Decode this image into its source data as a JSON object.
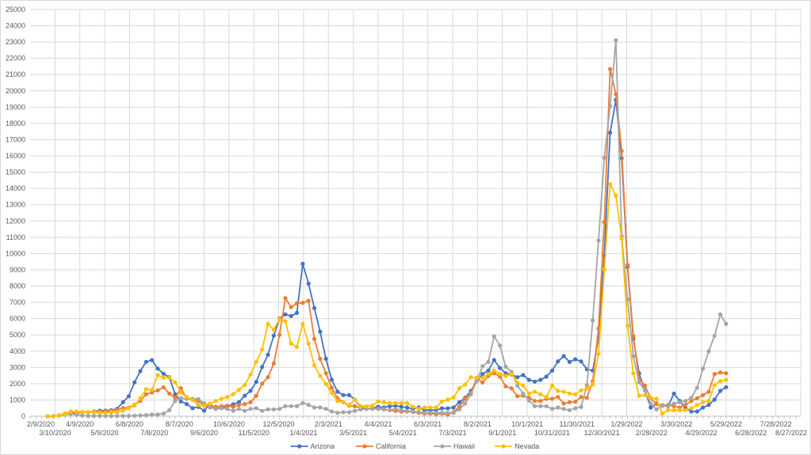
{
  "chart_data": {
    "type": "line",
    "title": "",
    "xlabel": "",
    "ylabel": "",
    "ylim": [
      0,
      25000
    ],
    "y_tick_step": 1000,
    "grid": true,
    "legend_position": "bottom",
    "x_start_date": "3/1/2020",
    "x_step_days": 7,
    "x_axis_start_date": "2/9/2020",
    "x_tick_step_days": 30,
    "x_tick_labels": [
      "2/9/2020",
      "3/10/2020",
      "4/9/2020",
      "5/9/2020",
      "6/8/2020",
      "7/8/2020",
      "8/7/2020",
      "9/6/2020",
      "10/6/2020",
      "11/5/2020",
      "12/5/2020",
      "1/4/2021",
      "2/3/2021",
      "3/5/2021",
      "4/4/2021",
      "5/4/2021",
      "6/3/2021",
      "7/3/2021",
      "8/2/2021",
      "9/1/2021",
      "10/1/2021",
      "10/31/2021",
      "11/30/2021",
      "12/30/2021",
      "1/29/2022",
      "2/28/2022",
      "3/30/2022",
      "4/29/2022",
      "5/29/2022",
      "6/28/2022",
      "7/28/2022",
      "8/27/2022"
    ],
    "y_tick_labels": [
      "0",
      "1000",
      "2000",
      "3000",
      "4000",
      "5000",
      "6000",
      "7000",
      "8000",
      "9000",
      "10000",
      "11000",
      "12000",
      "13000",
      "14000",
      "15000",
      "16000",
      "17000",
      "18000",
      "19000",
      "20000",
      "21000",
      "22000",
      "23000",
      "24000",
      "25000"
    ],
    "series": [
      {
        "name": "Arizona",
        "color": "#4472C4",
        "values": [
          0,
          0,
          50,
          130,
          160,
          210,
          260,
          260,
          290,
          340,
          340,
          370,
          450,
          860,
          1230,
          2080,
          2770,
          3340,
          3450,
          2930,
          2610,
          2400,
          1350,
          910,
          750,
          490,
          580,
          340,
          750,
          450,
          540,
          620,
          730,
          860,
          1260,
          1560,
          2110,
          3020,
          3780,
          4950,
          6000,
          6260,
          6160,
          6350,
          9370,
          8150,
          6650,
          5200,
          3530,
          2240,
          1510,
          1300,
          1300,
          1020,
          540,
          450,
          490,
          580,
          535,
          616,
          648,
          584,
          535,
          454,
          535,
          373,
          373,
          373,
          486,
          486,
          535,
          859,
          1135,
          1556,
          2156,
          2594,
          2805,
          3453,
          2967,
          2642,
          2561,
          2399,
          2529,
          2237,
          2124,
          2237,
          2431,
          2805,
          3372,
          3696,
          3339,
          3501,
          3372,
          2885,
          2804,
          4830,
          9888,
          17426,
          19452,
          15854,
          9175,
          4750,
          2642,
          1589,
          535,
          778,
          648,
          616,
          1394,
          940,
          486,
          292,
          292,
          535,
          697,
          1021,
          1556,
          1783
        ]
      },
      {
        "name": "California",
        "color": "#ED7D31",
        "values": [
          0,
          0,
          50,
          160,
          210,
          210,
          260,
          260,
          260,
          290,
          290,
          340,
          400,
          500,
          530,
          700,
          940,
          1350,
          1460,
          1590,
          1780,
          1390,
          1130,
          1720,
          1100,
          1010,
          940,
          650,
          580,
          580,
          620,
          650,
          580,
          700,
          750,
          860,
          1260,
          2000,
          2400,
          3240,
          5000,
          7260,
          6700,
          6940,
          6970,
          7100,
          4750,
          3530,
          2640,
          1750,
          1100,
          860,
          650,
          620,
          490,
          450,
          490,
          450,
          421,
          373,
          324,
          292,
          292,
          259,
          211,
          162,
          162,
          130,
          162,
          97,
          259,
          584,
          1070,
          1426,
          2318,
          2075,
          2480,
          2642,
          2431,
          1832,
          1718,
          1232,
          1264,
          1135,
          940,
          940,
          1070,
          1070,
          1183,
          778,
          859,
          892,
          1183,
          1135,
          2156,
          5398,
          11930,
          21332,
          19792,
          16307,
          9288,
          4912,
          2318,
          1880,
          1102,
          746,
          648,
          697,
          616,
          535,
          697,
          940,
          1102,
          1297,
          1507,
          2594,
          2691,
          2642
        ]
      },
      {
        "name": "Hawaii",
        "color": "#A5A5A5",
        "values": [
          0,
          0,
          50,
          100,
          130,
          100,
          50,
          20,
          20,
          20,
          20,
          20,
          20,
          20,
          20,
          30,
          50,
          70,
          100,
          100,
          160,
          370,
          940,
          1110,
          1070,
          1070,
          1050,
          800,
          540,
          450,
          490,
          450,
          330,
          450,
          330,
          450,
          490,
          330,
          420,
          420,
          450,
          620,
          620,
          620,
          810,
          700,
          540,
          540,
          450,
          290,
          210,
          250,
          250,
          330,
          420,
          450,
          450,
          454,
          454,
          373,
          454,
          373,
          324,
          292,
          259,
          211,
          211,
          211,
          211,
          211,
          211,
          421,
          778,
          1345,
          2156,
          3080,
          3339,
          4912,
          4344,
          3047,
          2723,
          1880,
          1394,
          973,
          616,
          616,
          616,
          454,
          535,
          454,
          373,
          486,
          567,
          1913,
          5884,
          10796,
          15886,
          19063,
          23115,
          11071,
          7181,
          3696,
          2075,
          1589,
          778,
          421,
          697,
          616,
          778,
          859,
          940,
          1135,
          1751,
          2918,
          3988,
          4944,
          6257,
          5674
        ]
      },
      {
        "name": "Nevada",
        "color": "#FFC000",
        "values": [
          0,
          0,
          50,
          130,
          290,
          290,
          260,
          260,
          260,
          210,
          210,
          260,
          260,
          340,
          500,
          650,
          1100,
          1670,
          1620,
          2530,
          2370,
          2370,
          2080,
          1460,
          1180,
          1010,
          680,
          650,
          780,
          940,
          1070,
          1180,
          1350,
          1620,
          1910,
          2560,
          3340,
          4100,
          5670,
          5320,
          5970,
          5840,
          4470,
          4260,
          5670,
          4470,
          3130,
          2480,
          1990,
          1430,
          940,
          860,
          700,
          1020,
          620,
          620,
          650,
          910,
          859,
          810,
          810,
          810,
          810,
          584,
          454,
          535,
          535,
          535,
          908,
          1021,
          1151,
          1718,
          1945,
          2399,
          2367,
          2367,
          2594,
          2805,
          2594,
          2480,
          2594,
          2075,
          1880,
          1394,
          1507,
          1345,
          1183,
          1880,
          1556,
          1507,
          1394,
          1345,
          1589,
          1702,
          1945,
          3826,
          9013,
          14265,
          13552,
          10910,
          5560,
          2642,
          1264,
          1297,
          1135,
          1070,
          162,
          373,
          373,
          373,
          373,
          486,
          697,
          859,
          940,
          1913,
          2156,
          2237
        ]
      }
    ]
  }
}
